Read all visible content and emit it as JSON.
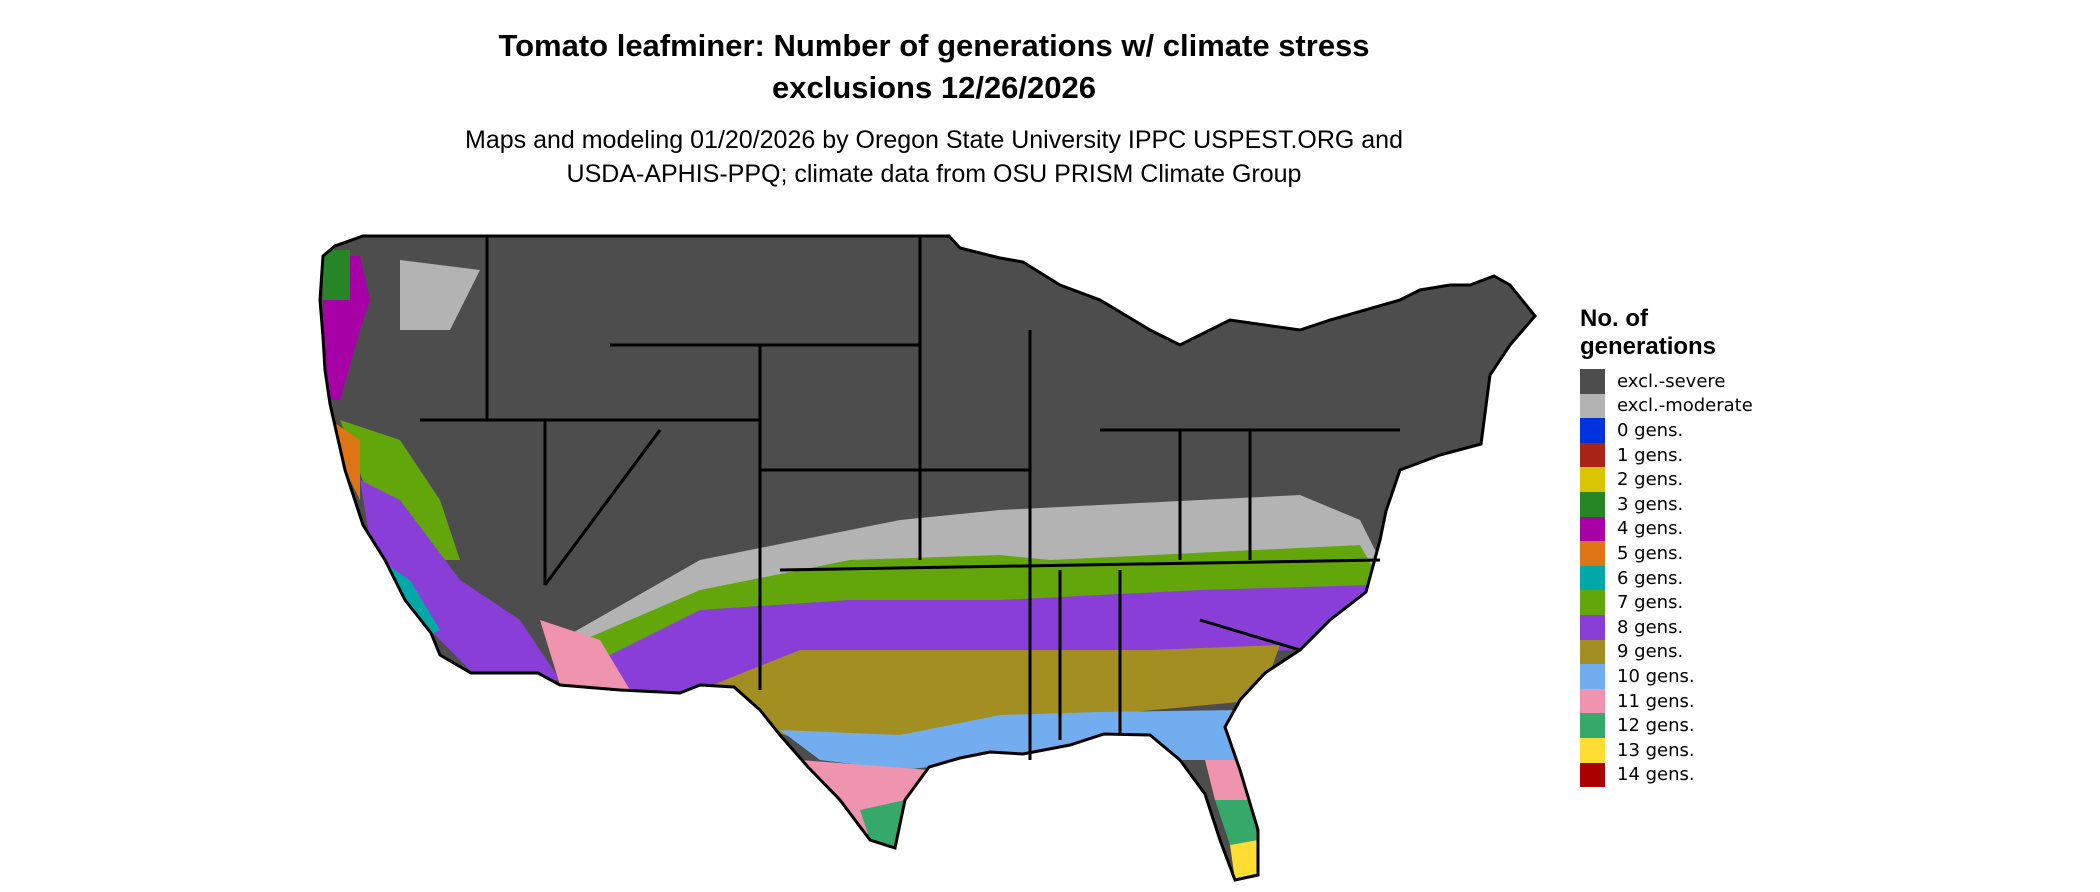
{
  "title": {
    "line1": "Tomato leafminer: Number of generations w/ climate stress",
    "line2": "exclusions 12/26/2026"
  },
  "subtitle": {
    "line1": "Maps and modeling 01/20/2026 by Oregon State University IPPC USPEST.ORG and",
    "line2": "USDA-APHIS-PPQ; climate data from OSU PRISM Climate Group"
  },
  "legend": {
    "title_line1": "No. of",
    "title_line2": "generations",
    "items": [
      {
        "label": "excl.-severe",
        "color": "#4d4d4d"
      },
      {
        "label": "excl.-moderate",
        "color": "#b3b3b3"
      },
      {
        "label": "0 gens.",
        "color": "#0033dd"
      },
      {
        "label": "1 gens.",
        "color": "#aa2418"
      },
      {
        "label": "2 gens.",
        "color": "#d9c400"
      },
      {
        "label": "3 gens.",
        "color": "#268626"
      },
      {
        "label": "4 gens.",
        "color": "#a600a6"
      },
      {
        "label": "5 gens.",
        "color": "#dd7415"
      },
      {
        "label": "6 gens.",
        "color": "#00a8a8"
      },
      {
        "label": "7 gens.",
        "color": "#62a60c"
      },
      {
        "label": "8 gens.",
        "color": "#8a3ed8"
      },
      {
        "label": "9 gens.",
        "color": "#a38e22"
      },
      {
        "label": "10 gens.",
        "color": "#72adf0"
      },
      {
        "label": "11 gens.",
        "color": "#f093ae"
      },
      {
        "label": "12 gens.",
        "color": "#36a86a"
      },
      {
        "label": "13 gens.",
        "color": "#ffdd33"
      },
      {
        "label": "14 gens.",
        "color": "#aa0000"
      }
    ]
  }
}
